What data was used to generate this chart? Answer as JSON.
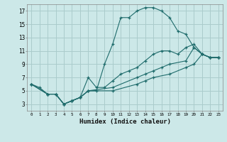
{
  "xlabel": "Humidex (Indice chaleur)",
  "xlim": [
    -0.5,
    23.5
  ],
  "ylim": [
    2,
    18
  ],
  "xticks": [
    0,
    1,
    2,
    3,
    4,
    5,
    6,
    7,
    8,
    9,
    10,
    11,
    12,
    13,
    14,
    15,
    16,
    17,
    18,
    19,
    20,
    21,
    22,
    23
  ],
  "yticks": [
    3,
    5,
    7,
    9,
    11,
    13,
    15,
    17
  ],
  "bg": "#cce8e8",
  "grid_color": "#aacccc",
  "line_color": "#1e6b6b",
  "lines": [
    {
      "x": [
        0,
        1,
        2,
        3,
        4,
        5,
        6,
        7,
        8,
        9,
        10,
        11,
        12,
        13,
        14,
        15,
        16,
        17,
        18,
        19,
        20,
        21,
        22,
        23
      ],
      "y": [
        6,
        5.5,
        4.5,
        4.5,
        3,
        3.5,
        4,
        5,
        5,
        9,
        12,
        16,
        16,
        17,
        17.5,
        17.5,
        17,
        16,
        14,
        13.5,
        11.5,
        10.5,
        10,
        10
      ]
    },
    {
      "x": [
        0,
        2,
        3,
        4,
        5,
        6,
        7,
        8,
        9,
        10,
        11,
        12,
        13,
        14,
        15,
        16,
        17,
        18,
        19,
        20,
        21,
        22,
        23
      ],
      "y": [
        6,
        4.5,
        4.5,
        3,
        3.5,
        4,
        7,
        5.5,
        5.5,
        6.5,
        7.5,
        8,
        8.5,
        9.5,
        10.5,
        11,
        11,
        10.5,
        11.5,
        12,
        10.5,
        10,
        10
      ]
    },
    {
      "x": [
        0,
        2,
        3,
        4,
        5,
        6,
        7,
        10,
        13,
        14,
        15,
        16,
        17,
        19,
        20,
        21,
        22,
        23
      ],
      "y": [
        6,
        4.5,
        4.5,
        3,
        3.5,
        4,
        5,
        5.5,
        7,
        7.5,
        8,
        8.5,
        9,
        9.5,
        11.5,
        10.5,
        10,
        10
      ]
    },
    {
      "x": [
        0,
        2,
        3,
        4,
        5,
        6,
        7,
        10,
        13,
        14,
        15,
        17,
        19,
        20,
        21,
        22,
        23
      ],
      "y": [
        6,
        4.5,
        4.5,
        3,
        3.5,
        4,
        5,
        5,
        6,
        6.5,
        7,
        7.5,
        8.5,
        9,
        10.5,
        10,
        10
      ]
    }
  ]
}
